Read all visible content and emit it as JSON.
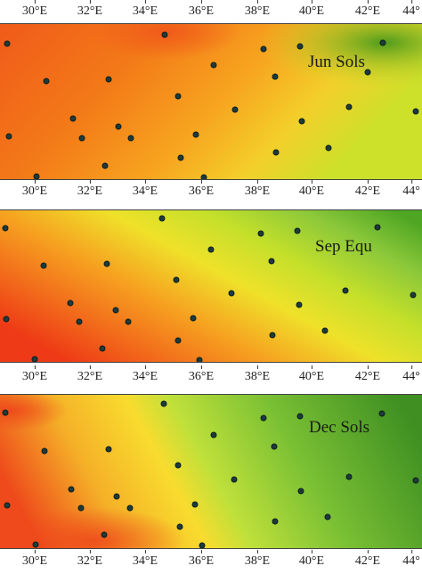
{
  "longitude_ticks": [
    "30°E",
    "32°E",
    "34°E",
    "36°E",
    "38°E",
    "40°E",
    "42°E",
    "44°"
  ],
  "panels": [
    {
      "name": "jun-sols",
      "label": "Jun Sols",
      "colors": [
        "#f05a1a",
        "#f37a18",
        "#f7a41f",
        "#f3cf2a",
        "#cde02a",
        "#4e9a1c"
      ]
    },
    {
      "name": "sep-equ",
      "label": "Sep Equ",
      "colors": [
        "#ee3a16",
        "#f6a020",
        "#efe12a",
        "#c5e02a",
        "#8cc83a",
        "#4fa623"
      ]
    },
    {
      "name": "dec-sols",
      "label": "Dec Sols",
      "colors": [
        "#ee4a1b",
        "#f5b028",
        "#f8dc2e",
        "#bfe03a",
        "#7ac034",
        "#3f8f22"
      ]
    }
  ]
}
